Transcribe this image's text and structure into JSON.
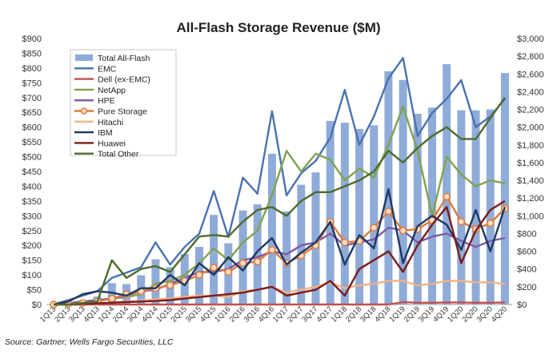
{
  "source_note": "Source: Gartner; Wells Fargo Securities, LLC",
  "colors": {
    "Total All-Flash": "#8fabd8",
    "EMC": "#4a72b0",
    "Dell (ex-EMC)": "#c0504d",
    "NetApp": "#80a34d",
    "HPE": "#7b5aa6",
    "Pure Storage": "#e07b39",
    "Hitachi": "#f4b183",
    "IBM": "#1f3864",
    "Huawei": "#7b1c1c",
    "Total Other": "#4f6b2a"
  },
  "chart_data": {
    "type": "bar",
    "title": "All-Flash Storage Revenue ($M)",
    "legend_position": "top-left",
    "grid": false,
    "y_left": {
      "range": [
        0,
        900
      ],
      "ticks": [
        "$0",
        "$50",
        "$100",
        "$150",
        "$200",
        "$250",
        "$300",
        "$350",
        "$400",
        "$450",
        "$500",
        "$550",
        "$600",
        "$650",
        "$700",
        "$750",
        "$800",
        "$850",
        "$900"
      ]
    },
    "y_right": {
      "range": [
        0,
        3000
      ],
      "ticks": [
        "$0",
        "$200",
        "$400",
        "$600",
        "$800",
        "$1,000",
        "$1,200",
        "$1,400",
        "$1,600",
        "$1,800",
        "$2,000",
        "$2,200",
        "$2,400",
        "$2,600",
        "$2,800",
        "$3,000"
      ]
    },
    "categories": [
      "1Q13",
      "2Q13",
      "3Q13",
      "4Q13",
      "1Q14",
      "2Q14",
      "3Q14",
      "4Q14",
      "1Q15",
      "2Q15",
      "3Q15",
      "4Q15",
      "1Q16",
      "2Q16",
      "3Q16",
      "4Q16",
      "1Q17",
      "2Q17",
      "3Q17",
      "4Q17",
      "1Q18",
      "2Q18",
      "3Q18",
      "4Q18",
      "1Q19",
      "2Q19",
      "3Q19",
      "4Q19",
      "1Q20",
      "2Q20",
      "3Q20",
      "4Q20"
    ],
    "x_tick_labels": [
      "1Q13",
      "3Q13",
      "1Q14",
      "3Q14",
      "1Q15",
      "3Q15",
      "1Q16",
      "3Q16",
      "1Q17",
      "3Q17",
      "1Q18",
      "3Q18",
      "1Q19",
      "3Q19",
      "1Q20",
      "3Q20",
      "2Q13",
      "4Q13",
      "2Q14",
      "4Q14",
      "2Q15",
      "4Q15",
      "2Q16",
      "4Q16",
      "2Q17",
      "4Q17",
      "2Q18",
      "4Q18",
      "2Q19",
      "4Q19",
      "2Q20",
      "4Q20"
    ],
    "series": [
      {
        "name": "Total All-Flash",
        "type": "bar",
        "axis": "right",
        "values": [
          2,
          20,
          50,
          90,
          240,
          230,
          330,
          510,
          420,
          570,
          650,
          1010,
          690,
          1060,
          1130,
          1700,
          1050,
          1350,
          1490,
          2070,
          2050,
          1980,
          2020,
          2630,
          2530,
          2150,
          2220,
          2710,
          2190,
          2190,
          2200,
          2610
        ]
      },
      {
        "name": "EMC",
        "type": "line",
        "axis": "right",
        "values": [
          2,
          50,
          100,
          150,
          300,
          360,
          420,
          700,
          450,
          650,
          800,
          1280,
          760,
          1430,
          1250,
          2180,
          1230,
          1480,
          1620,
          1880,
          2420,
          1800,
          2120,
          2550,
          2780,
          1900,
          2160,
          2320,
          2530,
          2000,
          2120,
          2320
        ]
      },
      {
        "name": "Dell (ex-EMC)",
        "type": "line",
        "axis": "left",
        "values": [
          0,
          0,
          0,
          0,
          0,
          0,
          0,
          0,
          0,
          0,
          0,
          0,
          0,
          0,
          0,
          0,
          0,
          0,
          0,
          0,
          0,
          0,
          0,
          0,
          8,
          6,
          6,
          7,
          7,
          6,
          6,
          7
        ]
      },
      {
        "name": "NetApp",
        "type": "line",
        "axis": "left",
        "values": [
          0,
          5,
          10,
          15,
          20,
          25,
          35,
          70,
          80,
          100,
          140,
          190,
          150,
          210,
          250,
          370,
          520,
          450,
          510,
          490,
          420,
          460,
          430,
          540,
          670,
          520,
          300,
          500,
          440,
          400,
          420,
          410
        ]
      },
      {
        "name": "HPE",
        "type": "line",
        "axis": "left",
        "values": [
          0,
          5,
          10,
          15,
          20,
          30,
          45,
          50,
          70,
          90,
          110,
          110,
          120,
          150,
          160,
          180,
          170,
          200,
          210,
          240,
          200,
          210,
          220,
          260,
          250,
          210,
          230,
          240,
          215,
          195,
          215,
          225
        ]
      },
      {
        "name": "Pure Storage",
        "type": "line",
        "axis": "left",
        "markers": true,
        "values": [
          0,
          2,
          5,
          10,
          20,
          35,
          45,
          55,
          65,
          80,
          100,
          125,
          110,
          140,
          145,
          185,
          140,
          165,
          200,
          280,
          210,
          215,
          260,
          315,
          250,
          255,
          285,
          365,
          280,
          255,
          275,
          325
        ]
      },
      {
        "name": "Hitachi",
        "type": "line",
        "axis": "left",
        "values": [
          0,
          0,
          2,
          4,
          6,
          10,
          12,
          18,
          20,
          25,
          30,
          30,
          25,
          45,
          50,
          60,
          40,
          50,
          60,
          75,
          55,
          65,
          70,
          80,
          80,
          65,
          70,
          80,
          80,
          75,
          75,
          70
        ]
      },
      {
        "name": "IBM",
        "type": "line",
        "axis": "left",
        "values": [
          0,
          10,
          35,
          45,
          40,
          30,
          55,
          55,
          100,
          65,
          140,
          100,
          160,
          115,
          180,
          225,
          135,
          175,
          210,
          280,
          135,
          235,
          190,
          390,
          140,
          265,
          300,
          270,
          185,
          320,
          180,
          330
        ]
      },
      {
        "name": "Huawei",
        "type": "line",
        "axis": "left",
        "values": [
          0,
          0,
          2,
          4,
          6,
          8,
          10,
          12,
          15,
          20,
          25,
          30,
          35,
          40,
          50,
          60,
          30,
          40,
          50,
          80,
          30,
          120,
          150,
          180,
          110,
          200,
          270,
          330,
          140,
          250,
          320,
          350
        ]
      },
      {
        "name": "Total Other",
        "type": "line",
        "axis": "left",
        "values": [
          0,
          0,
          5,
          10,
          150,
          90,
          120,
          130,
          110,
          170,
          230,
          235,
          230,
          280,
          320,
          330,
          300,
          350,
          380,
          380,
          400,
          420,
          450,
          520,
          480,
          530,
          570,
          600,
          560,
          560,
          630,
          700
        ]
      }
    ]
  }
}
